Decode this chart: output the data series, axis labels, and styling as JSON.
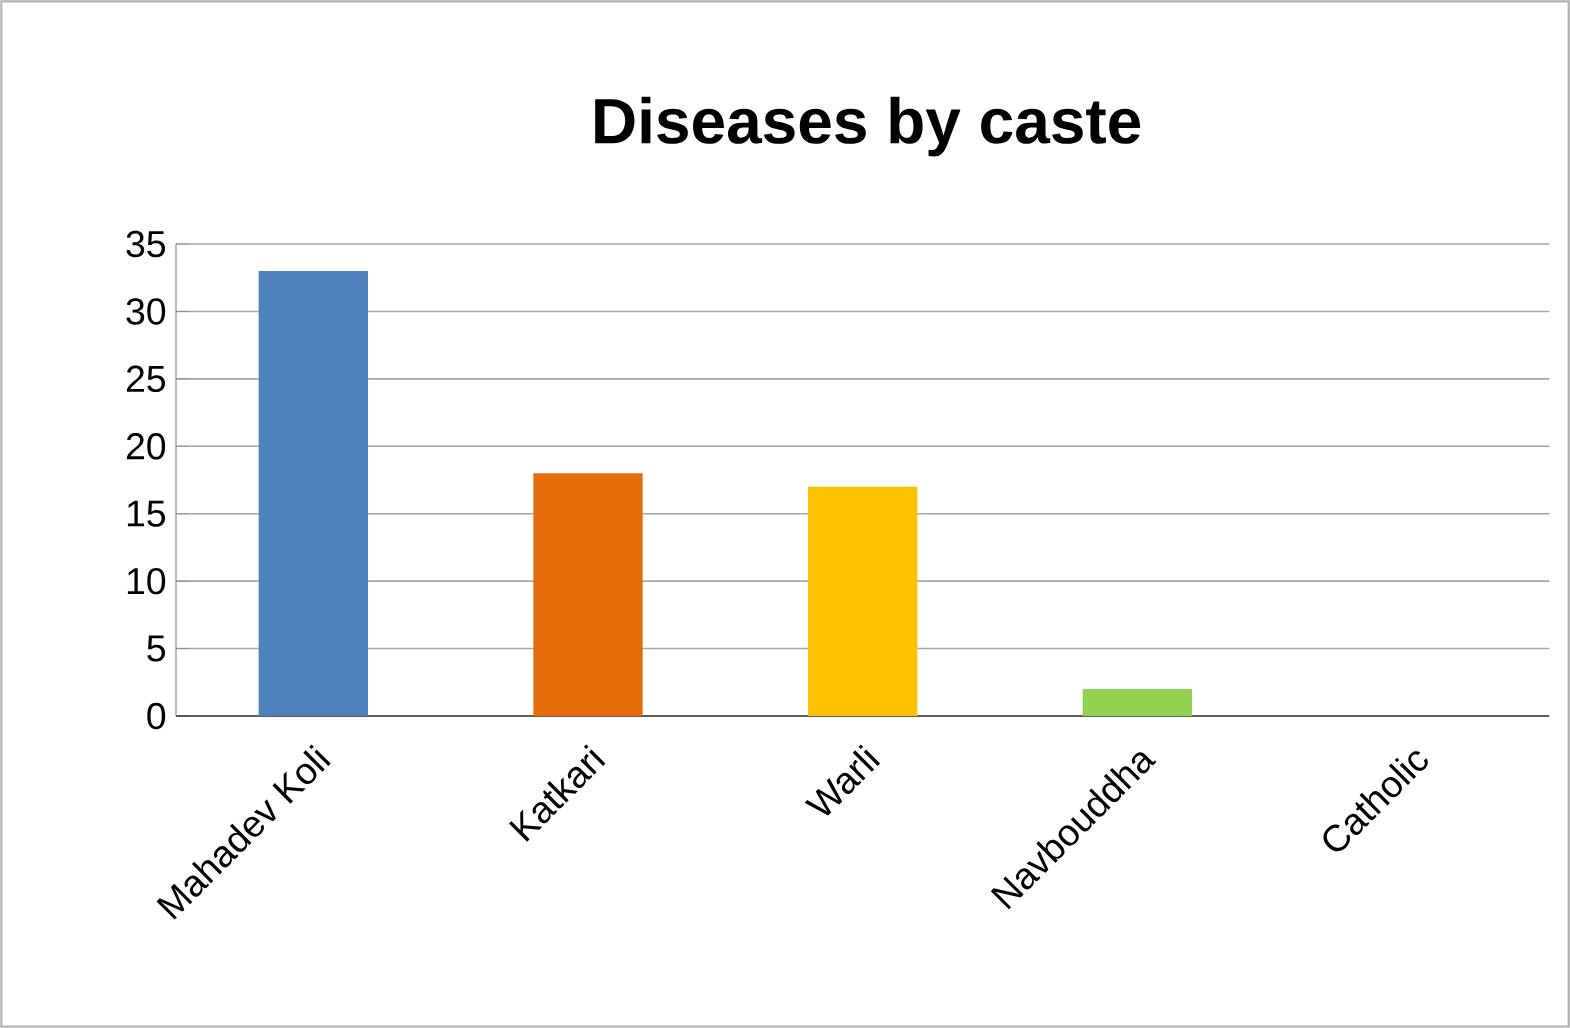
{
  "chart_data": {
    "type": "bar",
    "title": "Diseases by caste",
    "categories": [
      "Mahadev Koli",
      "Katkari",
      "Warli",
      "Navbouddha",
      "Catholic"
    ],
    "values": [
      33,
      18,
      17,
      2,
      0
    ],
    "colors": [
      "#4f81bd",
      "#e46c0a",
      "#ffc000",
      "#92d050",
      "#8064a2"
    ],
    "ylim": [
      0,
      35
    ],
    "yticks": [
      0,
      5,
      10,
      15,
      20,
      25,
      30,
      35
    ],
    "grid": "y"
  }
}
